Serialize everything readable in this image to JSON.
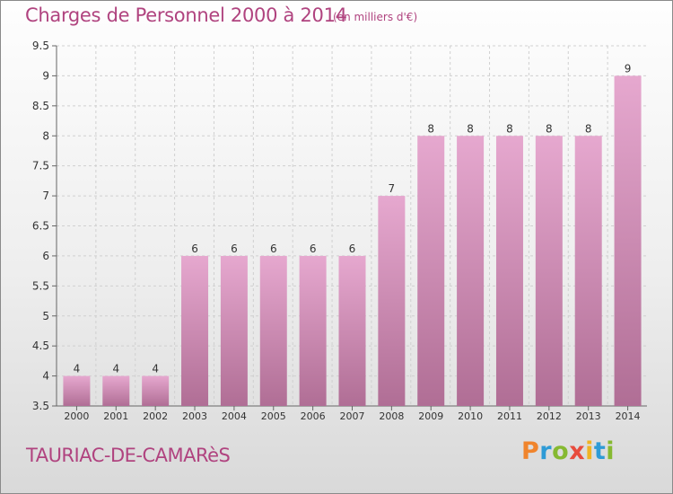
{
  "title": "Charges de Personnel 2000 à 2014",
  "subtitle": "(en milliers d'€)",
  "commune": "TAURIAC-DE-CAMARèS",
  "logo": {
    "letters": [
      "P",
      "r",
      "o",
      "x",
      "i",
      "t",
      "i"
    ],
    "colors": [
      "#f0842c",
      "#2e9bd6",
      "#86b931",
      "#e84c3d",
      "#f0b323",
      "#2e9bd6",
      "#86b931"
    ]
  },
  "chart_data": {
    "type": "bar",
    "categories": [
      "2000",
      "2001",
      "2002",
      "2003",
      "2004",
      "2005",
      "2006",
      "2007",
      "2008",
      "2009",
      "2010",
      "2011",
      "2012",
      "2013",
      "2014"
    ],
    "values": [
      4,
      4,
      4,
      6,
      6,
      6,
      6,
      6,
      7,
      8,
      8,
      8,
      8,
      8,
      9
    ],
    "value_labels": [
      "4",
      "4",
      "4",
      "6",
      "6",
      "6",
      "6",
      "6",
      "7",
      "8",
      "8",
      "8",
      "8",
      "8",
      "9"
    ],
    "ylim": [
      3.5,
      9.5
    ],
    "yticks": [
      3.5,
      4,
      4.5,
      5,
      5.5,
      6,
      6.5,
      7,
      7.5,
      8,
      8.5,
      9,
      9.5
    ],
    "ytick_labels": [
      "3.5",
      "4",
      "4.5",
      "5",
      "5.5",
      "6",
      "6.5",
      "7",
      "7.5",
      "8",
      "8.5",
      "9",
      "9.5"
    ],
    "grid": true,
    "colors": {
      "bar_top": "#e6a8cf",
      "bar_bottom": "#b06e95",
      "text": "#333333",
      "grid": "#d0d0d0",
      "axis": "#666666"
    }
  }
}
